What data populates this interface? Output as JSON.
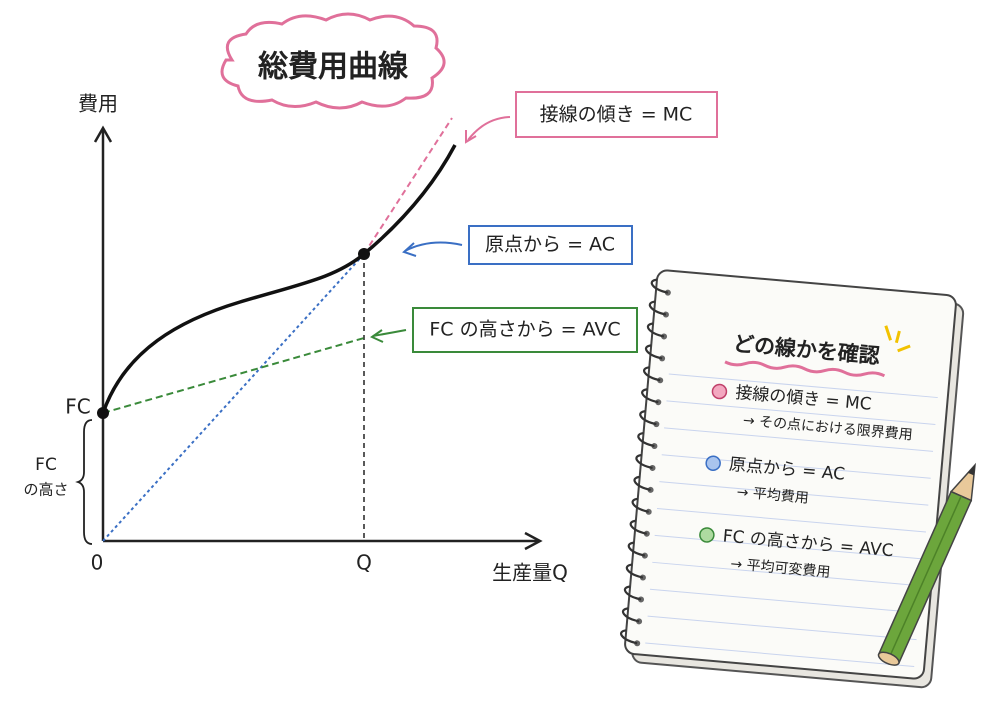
{
  "title": "総費用曲線",
  "axes": {
    "y_label": "費用",
    "x_label": "生産量Q",
    "origin": "0",
    "q_tick": "Q",
    "fc_tick": "FC",
    "fc_height": [
      "FC",
      "の高さ"
    ]
  },
  "callouts": [
    {
      "label": "接線の傾き = MC"
    },
    {
      "label": "原点から = AC"
    },
    {
      "label": "FC の高さから = AVC"
    }
  ],
  "notebook": {
    "title": "どの線かを確認",
    "items": [
      {
        "main": "接線の傾き = MC",
        "sub": "→ その点における限界費用"
      },
      {
        "main": "原点から = AC",
        "sub": "→ 平均費用"
      },
      {
        "main": "FC の高さから = AVC",
        "sub": "→ 平均可変費用"
      }
    ]
  }
}
